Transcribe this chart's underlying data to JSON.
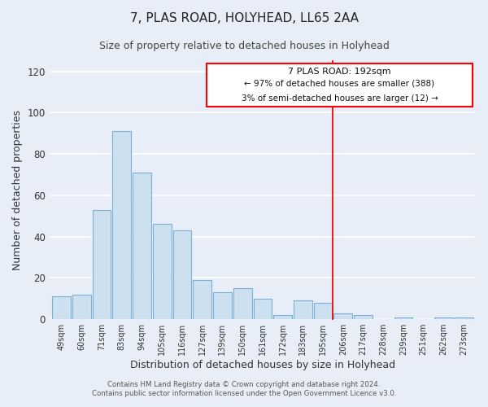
{
  "title": "7, PLAS ROAD, HOLYHEAD, LL65 2AA",
  "subtitle": "Size of property relative to detached houses in Holyhead",
  "xlabel": "Distribution of detached houses by size in Holyhead",
  "ylabel": "Number of detached properties",
  "bar_labels": [
    "49sqm",
    "60sqm",
    "71sqm",
    "83sqm",
    "94sqm",
    "105sqm",
    "116sqm",
    "127sqm",
    "139sqm",
    "150sqm",
    "161sqm",
    "172sqm",
    "183sqm",
    "195sqm",
    "206sqm",
    "217sqm",
    "228sqm",
    "239sqm",
    "251sqm",
    "262sqm",
    "273sqm"
  ],
  "bar_values": [
    11,
    12,
    53,
    91,
    71,
    46,
    43,
    19,
    13,
    15,
    10,
    2,
    9,
    8,
    3,
    2,
    0,
    1,
    0,
    1,
    1
  ],
  "bar_color": "#cce0f0",
  "bar_edge_color": "#7ab0d4",
  "ylim": [
    0,
    125
  ],
  "yticks": [
    0,
    20,
    40,
    60,
    80,
    100,
    120
  ],
  "property_line_label": "7 PLAS ROAD: 192sqm",
  "annotation_line1": "← 97% of detached houses are smaller (388)",
  "annotation_line2": "3% of semi-detached houses are larger (12) →",
  "footer_line1": "Contains HM Land Registry data © Crown copyright and database right 2024.",
  "footer_line2": "Contains public sector information licensed under the Open Government Licence v3.0.",
  "background_color": "#e8eef8",
  "grid_color": "#ffffff",
  "title_fontsize": 11,
  "subtitle_fontsize": 9,
  "axis_label_fontsize": 9
}
